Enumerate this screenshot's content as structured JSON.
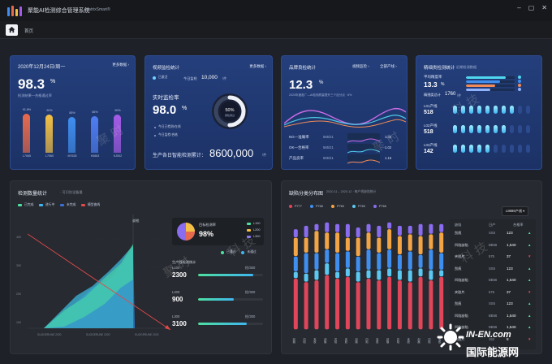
{
  "window": {
    "title": "聚能AI检测综合管理系统",
    "subtitle": "MatrixSmart®",
    "breadcrumb": "首页"
  },
  "card1": {
    "date": "2020年12月24日/周一",
    "link": "更多数据 ›",
    "value": "98.3",
    "unit": "%",
    "desc": "检测结果—合格通过率",
    "bars": [
      {
        "label": "L7065",
        "value": 91.8,
        "display": "91.8%",
        "color": "#e86a4c"
      },
      {
        "label": "L7060",
        "value": 90,
        "display": "90%",
        "color": "#f3c045"
      },
      {
        "label": "M7635",
        "value": 85,
        "display": "85%",
        "color": "#3f8ff0"
      },
      {
        "label": "H3663",
        "value": 86,
        "display": "86%",
        "color": "#4f7ef2"
      },
      {
        "label": "KJ002",
        "value": 90,
        "display": "90%",
        "color": "#a65be8"
      }
    ]
  },
  "card2": {
    "title": "视频监检统计",
    "link": "更多数据 ›",
    "status": "已激活",
    "today_label": "今日监检",
    "today_value": "10,000",
    "today_unit": "/件",
    "rate_title": "实时监检率",
    "rate_value": "98.0",
    "rate_unit": "%",
    "ring_value": "50%",
    "ring_label": "质检通过",
    "ring_fraction": 0.5,
    "notes": [
      "今日已检测/在线",
      "今日监检/合格"
    ],
    "total_label": "生产各日智能检测累计：",
    "total_value": "8600,000",
    "total_unit": "/件"
  },
  "card3": {
    "title": "品牌良检统计",
    "tags": [
      "视频监检 ›",
      "全部产线 ›"
    ],
    "value": "12.3",
    "unit": "%",
    "desc": "2020年度各厂—AI检测质量提升三个百分点 · 6%",
    "legend": [
      {
        "label": "NG—准确率",
        "value": "565/21",
        "pct": "1.34",
        "color": "#c96be6"
      },
      {
        "label": "OK—合格率",
        "value": "565/21",
        "pct": "1.02",
        "color": "#4dc9e6"
      },
      {
        "label": "产品良率",
        "value": "565/21",
        "pct": "1.16",
        "color": "#f08a56"
      }
    ]
  },
  "card4": {
    "title": "精细类检测统计",
    "subtitle": "近期检测数据",
    "avg_label": "平均精度率",
    "avg_value": "13.3",
    "avg_unit": "%",
    "total_label": "精细类总计",
    "total_value": "1760",
    "total_unit": "/件",
    "rows": [
      {
        "label": "L01产线",
        "value": "518",
        "fill": 0.8
      },
      {
        "label": "L02产线",
        "value": "518",
        "fill": 0.7
      },
      {
        "label": "L03产线",
        "value": "142",
        "fill": 0.45
      }
    ],
    "progress": [
      0.82,
      0.7,
      0.6,
      0.5
    ]
  },
  "card5": {
    "title": "检测数量统计",
    "subtitle": "· 可识别设备量",
    "legend": [
      "已完成",
      "进行中",
      "未完成",
      "模型曲线"
    ],
    "legend_colors": [
      "#4de0a0",
      "#3fb6f0",
      "#3b6fd6",
      "#e04a4a"
    ],
    "yticks": [
      "400",
      "300",
      "200",
      "100"
    ],
    "xticks": [
      "SUGGERUNE 2020",
      "SUGGERUNE 2020",
      "SUGGERUNE 2020"
    ],
    "marker": "说检",
    "pie_title": "目标检测率",
    "pie_value": "98%",
    "pie_legend": [
      {
        "label": "L100",
        "color": "#4de0a0"
      },
      {
        "label": "L200",
        "color": "#f3c045"
      },
      {
        "label": "L300",
        "color": "#8a6cf0"
      }
    ],
    "chips": [
      "已通过",
      "未通过"
    ],
    "line_title": "生产线检测统计",
    "lines": [
      {
        "value": "2300",
        "label": "L100",
        "right": "检/300",
        "fill": 0.85
      },
      {
        "value": "900",
        "label": "L200",
        "right": "检/300",
        "fill": 0.55
      },
      {
        "value": "3100",
        "label": "L300",
        "right": "检/300",
        "fill": 0.75
      }
    ]
  },
  "card6": {
    "title": "缺陷分类分布图",
    "subtitle": "2020.11 – 2020.12 · 每产线缺陷统计",
    "select": "L8686产线 ▾",
    "legend": [
      {
        "label": "P777",
        "color": "#e0455a"
      },
      {
        "label": "P766",
        "color": "#3f8ff0"
      },
      {
        "label": "P760",
        "color": "#f3a545"
      },
      {
        "label": "P760",
        "color": "#5ac8f0"
      },
      {
        "label": "P766",
        "color": "#8a6cf0"
      }
    ],
    "columns": [
      "缺陷",
      "日产",
      "合格率"
    ],
    "table": [
      {
        "name": "刮痕",
        "code": "SS5",
        "val": "123",
        "up": true
      },
      {
        "name": "凹陷缺陷",
        "code": "BB56",
        "val": "1,540",
        "up": true
      },
      {
        "name": "夹胶片",
        "code": "575",
        "val": "37",
        "up": false
      },
      {
        "name": "刮痕",
        "code": "SS5",
        "val": "123",
        "up": true
      },
      {
        "name": "凹陷缺陷",
        "code": "BB56",
        "val": "1,540",
        "up": true
      },
      {
        "name": "夹胶片",
        "code": "575",
        "val": "37",
        "up": false
      },
      {
        "name": "刮痕",
        "code": "SS5",
        "val": "123",
        "up": true
      },
      {
        "name": "凹陷缺陷",
        "code": "BB56",
        "val": "1,540",
        "up": true
      },
      {
        "name": "凹陷缺陷",
        "code": "BB56",
        "val": "1,540",
        "up": true
      },
      {
        "name": "夹胶片",
        "code": "152",
        "val": "8",
        "up": false
      }
    ],
    "xlabels": [
      "刮痕",
      "凹陷",
      "夹胶",
      "刮痕",
      "凹陷",
      "夹胶",
      "刮痕",
      "凹陷",
      "夹胶",
      "刮痕",
      "凹陷",
      "夹胶",
      "刮痕",
      "凹陷",
      "夹胶"
    ]
  },
  "watermark": {
    "text1": "科  技",
    "text2": "聚  时",
    "brand_top": "IN-EN.com",
    "brand_bottom": "国际能源网"
  }
}
